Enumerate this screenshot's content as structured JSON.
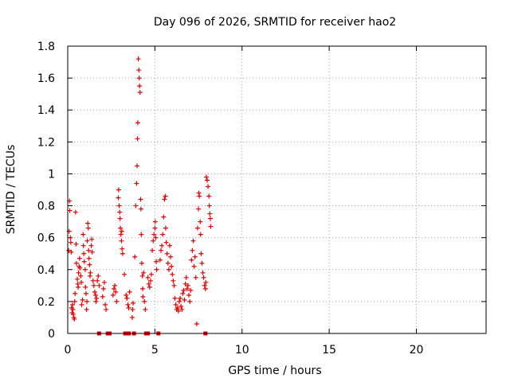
{
  "chart_data": {
    "type": "scatter",
    "title": "Day 096 of 2026, SRMTID for receiver hao2",
    "xlabel": "GPS time / hours",
    "ylabel": "SRMTID / TECUs",
    "xlim": [
      0,
      24
    ],
    "ylim": [
      0,
      1.8
    ],
    "xticks": [
      0,
      5,
      10,
      15,
      20
    ],
    "xtick_labels": [
      "0",
      "5",
      "10",
      "15",
      "20"
    ],
    "yticks": [
      0,
      0.2,
      0.4,
      0.6,
      0.8,
      1.0,
      1.2,
      1.4,
      1.6,
      1.8
    ],
    "ytick_labels": [
      "0",
      "0.2",
      "0.4",
      "0.6",
      "0.8",
      "1",
      "1.2",
      "1.4",
      "1.6",
      "1.8"
    ],
    "grid": true,
    "marker": "plus",
    "series": [
      {
        "color": "#e00000",
        "points": [
          [
            0.05,
            0.52
          ],
          [
            0.08,
            0.64
          ],
          [
            0.1,
            0.83
          ],
          [
            0.12,
            0.77
          ],
          [
            0.15,
            0.6
          ],
          [
            0.18,
            0.57
          ],
          [
            0.2,
            0.51
          ],
          [
            0.22,
            0.16
          ],
          [
            0.25,
            0.13
          ],
          [
            0.28,
            0.18
          ],
          [
            0.3,
            0.15
          ],
          [
            0.32,
            0.12
          ],
          [
            0.35,
            0.1
          ],
          [
            0.38,
            0.09
          ],
          [
            0.4,
            0.2
          ],
          [
            0.42,
            0.25
          ],
          [
            0.45,
            0.76
          ],
          [
            0.48,
            0.56
          ],
          [
            0.5,
            0.44
          ],
          [
            0.55,
            0.34
          ],
          [
            0.58,
            0.31
          ],
          [
            0.6,
            0.29
          ],
          [
            0.62,
            0.38
          ],
          [
            0.65,
            0.42
          ],
          [
            0.68,
            0.47
          ],
          [
            0.7,
            0.41
          ],
          [
            0.75,
            0.36
          ],
          [
            0.78,
            0.32
          ],
          [
            0.8,
            0.18
          ],
          [
            0.85,
            0.21
          ],
          [
            0.88,
            0.62
          ],
          [
            0.9,
            0.55
          ],
          [
            0.92,
            0.5
          ],
          [
            0.95,
            0.45
          ],
          [
            1.0,
            0.4
          ],
          [
            1.02,
            0.29
          ],
          [
            1.05,
            0.25
          ],
          [
            1.08,
            0.15
          ],
          [
            1.1,
            0.2
          ],
          [
            1.12,
            0.58
          ],
          [
            1.15,
            0.69
          ],
          [
            1.18,
            0.66
          ],
          [
            1.2,
            0.52
          ],
          [
            1.22,
            0.47
          ],
          [
            1.25,
            0.43
          ],
          [
            1.28,
            0.36
          ],
          [
            1.3,
            0.38
          ],
          [
            1.35,
            0.55
          ],
          [
            1.38,
            0.59
          ],
          [
            1.4,
            0.51
          ],
          [
            1.45,
            0.33
          ],
          [
            1.5,
            0.3
          ],
          [
            1.55,
            0.26
          ],
          [
            1.6,
            0.24
          ],
          [
            1.62,
            0.2
          ],
          [
            1.65,
            0.22
          ],
          [
            1.7,
            0.33
          ],
          [
            1.75,
            0.36
          ],
          [
            1.8,
            0.3
          ],
          [
            2.0,
            0.23
          ],
          [
            2.05,
            0.28
          ],
          [
            2.1,
            0.32
          ],
          [
            2.15,
            0.18
          ],
          [
            2.2,
            0.15
          ],
          [
            2.6,
            0.24
          ],
          [
            2.65,
            0.28
          ],
          [
            2.7,
            0.3
          ],
          [
            2.75,
            0.26
          ],
          [
            2.8,
            0.2
          ],
          [
            2.9,
            0.85
          ],
          [
            2.92,
            0.9
          ],
          [
            2.95,
            0.8
          ],
          [
            2.98,
            0.76
          ],
          [
            3.0,
            0.72
          ],
          [
            3.02,
            0.66
          ],
          [
            3.05,
            0.62
          ],
          [
            3.08,
            0.58
          ],
          [
            3.1,
            0.64
          ],
          [
            3.12,
            0.53
          ],
          [
            3.15,
            0.5
          ],
          [
            3.25,
            0.37
          ],
          [
            3.35,
            0.24
          ],
          [
            3.4,
            0.22
          ],
          [
            3.45,
            0.18
          ],
          [
            3.5,
            0.16
          ],
          [
            3.55,
            0.26
          ],
          [
            3.7,
            0.1
          ],
          [
            3.72,
            0.15
          ],
          [
            3.75,
            0.19
          ],
          [
            3.85,
            0.48
          ],
          [
            3.9,
            0.8
          ],
          [
            3.95,
            0.94
          ],
          [
            3.98,
            1.05
          ],
          [
            4.0,
            1.22
          ],
          [
            4.02,
            1.32
          ],
          [
            4.05,
            1.72
          ],
          [
            4.08,
            1.65
          ],
          [
            4.1,
            1.6
          ],
          [
            4.12,
            1.55
          ],
          [
            4.15,
            1.51
          ],
          [
            4.18,
            0.84
          ],
          [
            4.2,
            0.78
          ],
          [
            4.22,
            0.62
          ],
          [
            4.25,
            0.44
          ],
          [
            4.28,
            0.36
          ],
          [
            4.3,
            0.28
          ],
          [
            4.32,
            0.23
          ],
          [
            4.35,
            0.38
          ],
          [
            4.4,
            0.2
          ],
          [
            4.45,
            0.15
          ],
          [
            4.6,
            0.35
          ],
          [
            4.65,
            0.31
          ],
          [
            4.7,
            0.29
          ],
          [
            4.75,
            0.33
          ],
          [
            4.8,
            0.37
          ],
          [
            4.85,
            0.52
          ],
          [
            4.9,
            0.58
          ],
          [
            4.95,
            0.62
          ],
          [
            5.0,
            0.66
          ],
          [
            5.02,
            0.7
          ],
          [
            5.05,
            0.6
          ],
          [
            5.08,
            0.45
          ],
          [
            5.1,
            0.4
          ],
          [
            5.3,
            0.46
          ],
          [
            5.35,
            0.52
          ],
          [
            5.4,
            0.55
          ],
          [
            5.45,
            0.62
          ],
          [
            5.5,
            0.73
          ],
          [
            5.55,
            0.84
          ],
          [
            5.6,
            0.86
          ],
          [
            5.62,
            0.66
          ],
          [
            5.65,
            0.57
          ],
          [
            5.7,
            0.5
          ],
          [
            5.75,
            0.44
          ],
          [
            5.8,
            0.4
          ],
          [
            5.85,
            0.55
          ],
          [
            5.9,
            0.48
          ],
          [
            5.95,
            0.42
          ],
          [
            6.0,
            0.37
          ],
          [
            6.05,
            0.33
          ],
          [
            6.1,
            0.3
          ],
          [
            6.15,
            0.22
          ],
          [
            6.2,
            0.18
          ],
          [
            6.25,
            0.15
          ],
          [
            6.3,
            0.16
          ],
          [
            6.35,
            0.14
          ],
          [
            6.4,
            0.2
          ],
          [
            6.45,
            0.22
          ],
          [
            6.5,
            0.17
          ],
          [
            6.55,
            0.15
          ],
          [
            6.6,
            0.25
          ],
          [
            6.65,
            0.27
          ],
          [
            6.7,
            0.21
          ],
          [
            6.75,
            0.31
          ],
          [
            6.8,
            0.35
          ],
          [
            6.85,
            0.28
          ],
          [
            6.9,
            0.3
          ],
          [
            6.95,
            0.24
          ],
          [
            7.0,
            0.2
          ],
          [
            7.05,
            0.27
          ],
          [
            7.1,
            0.46
          ],
          [
            7.15,
            0.52
          ],
          [
            7.2,
            0.58
          ],
          [
            7.25,
            0.42
          ],
          [
            7.3,
            0.48
          ],
          [
            7.35,
            0.35
          ],
          [
            7.4,
            0.06
          ],
          [
            7.45,
            0.66
          ],
          [
            7.5,
            0.78
          ],
          [
            7.52,
            0.88
          ],
          [
            7.55,
            0.86
          ],
          [
            7.6,
            0.7
          ],
          [
            7.62,
            0.62
          ],
          [
            7.65,
            0.5
          ],
          [
            7.7,
            0.44
          ],
          [
            7.75,
            0.38
          ],
          [
            7.8,
            0.35
          ],
          [
            7.85,
            0.3
          ],
          [
            7.9,
            0.28
          ],
          [
            7.92,
            0.32
          ],
          [
            7.95,
            0.98
          ],
          [
            8.0,
            0.96
          ],
          [
            8.05,
            0.92
          ],
          [
            8.1,
            0.86
          ],
          [
            8.12,
            0.8
          ],
          [
            8.15,
            0.75
          ],
          [
            8.18,
            0.72
          ],
          [
            8.2,
            0.67
          ],
          [
            1.8,
            0.0
          ],
          [
            2.3,
            0.0
          ],
          [
            2.4,
            0.0
          ],
          [
            3.3,
            0.0
          ],
          [
            3.5,
            0.0
          ],
          [
            3.8,
            0.0
          ],
          [
            4.5,
            0.0
          ],
          [
            4.6,
            0.0
          ],
          [
            5.2,
            0.0
          ],
          [
            7.9,
            0.0
          ]
        ]
      }
    ]
  }
}
